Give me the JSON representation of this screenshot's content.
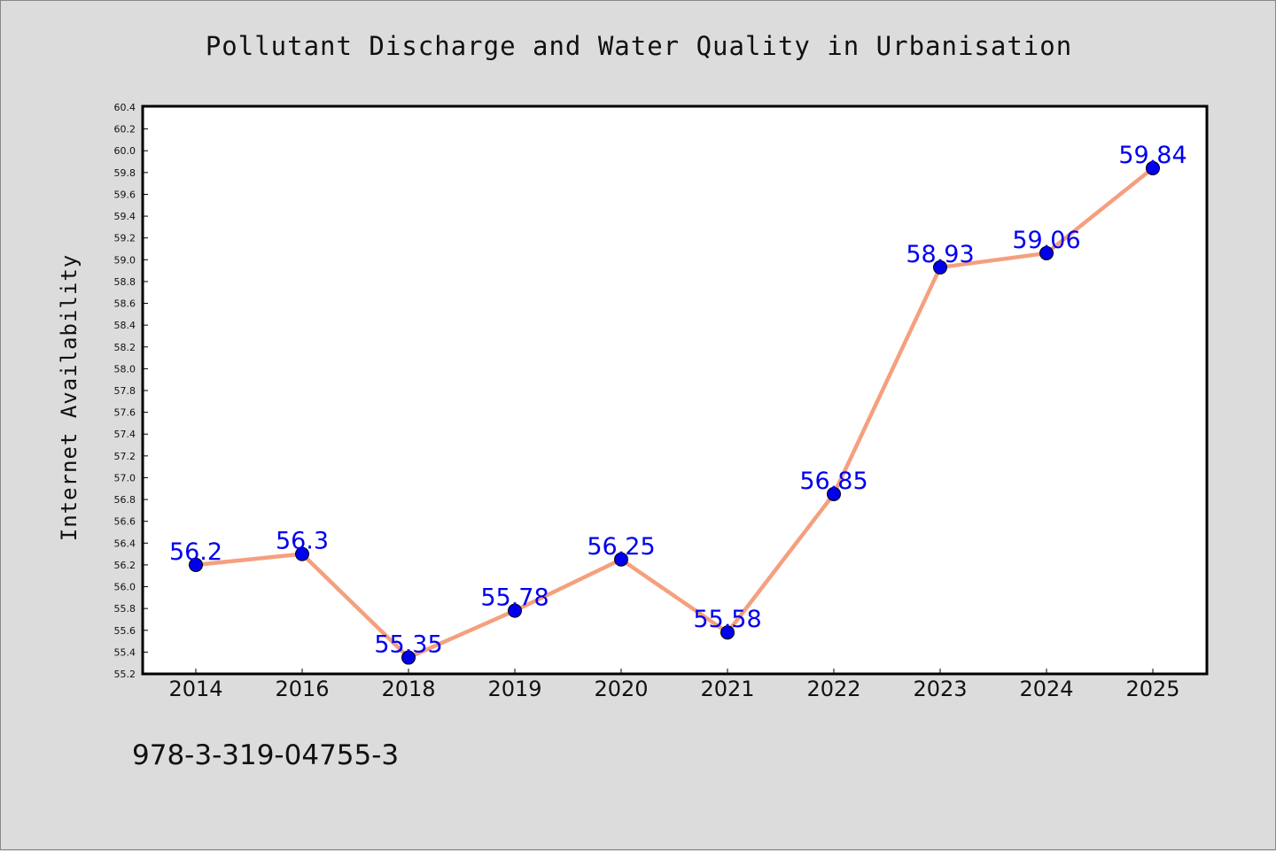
{
  "chart_data": {
    "type": "line",
    "title": "Pollutant Discharge and Water Quality in Urbanisation",
    "xlabel": "",
    "ylabel": "Internet Availability",
    "categories": [
      "2014",
      "2016",
      "2018",
      "2019",
      "2020",
      "2021",
      "2022",
      "2023",
      "2024",
      "2025"
    ],
    "series": [
      {
        "values": [
          56.2,
          56.3,
          55.35,
          55.78,
          56.25,
          55.58,
          56.85,
          58.93,
          59.06,
          59.84
        ],
        "data_labels": [
          "56.2",
          "56.3",
          "55.35",
          "55.78",
          "56.25",
          "55.58",
          "56.85",
          "58.93",
          "59.06",
          "59.84"
        ],
        "line_color": "#f4a07f",
        "marker_color": "#0000ee",
        "label_color": "#0000ee"
      }
    ],
    "ylim": [
      55.2,
      60.4
    ],
    "y_ticks": [
      "55.2",
      "55.4",
      "55.6",
      "55.8",
      "56.0",
      "56.2",
      "56.4",
      "56.6",
      "56.8",
      "57.0",
      "57.2",
      "57.4",
      "57.6",
      "57.8",
      "58.0",
      "58.2",
      "58.4",
      "58.6",
      "58.8",
      "59.0",
      "59.2",
      "59.4",
      "59.6",
      "59.8",
      "60.0",
      "60.2",
      "60.4"
    ],
    "grid": false,
    "legend": "none"
  },
  "footer": {
    "code": "978-3-319-04755-3"
  },
  "colors": {
    "background": "#dcdcdc",
    "plot_background": "#ffffff",
    "axis": "#000000"
  }
}
